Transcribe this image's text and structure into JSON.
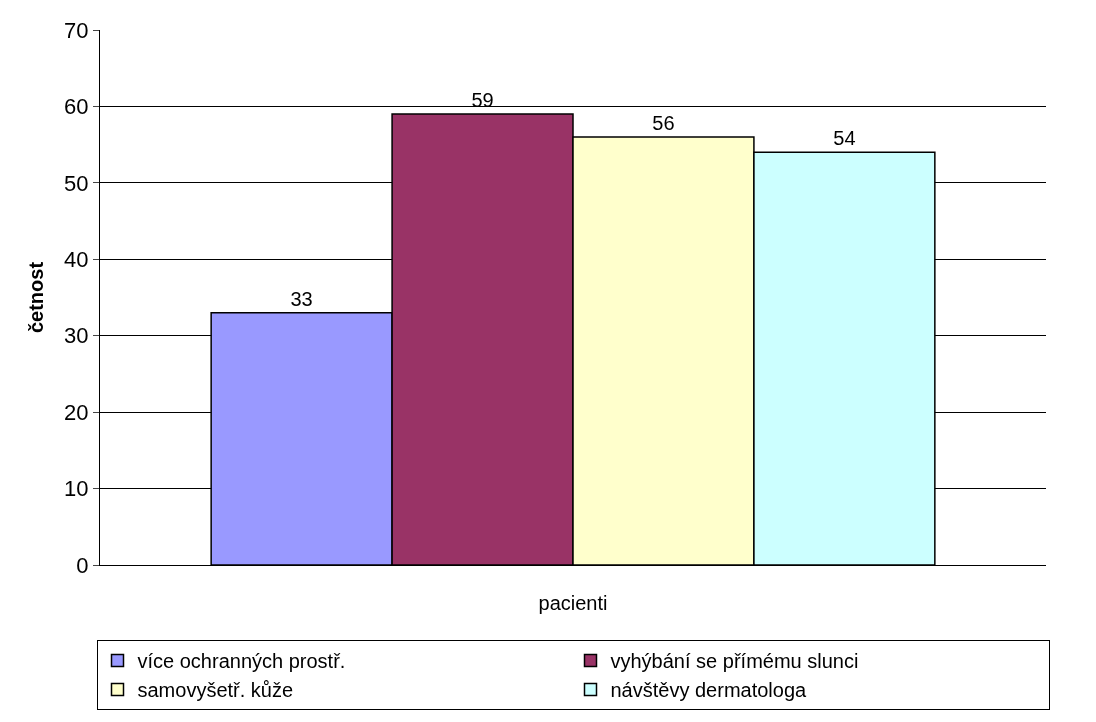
{
  "chart_data": {
    "type": "bar",
    "ylabel": "četnost",
    "categories": [
      "pacienti"
    ],
    "series": [
      {
        "name": "více ochranných prostř.",
        "color": "#9999ff",
        "values": [
          33
        ]
      },
      {
        "name": "vyhýbání se přímému slunci",
        "color": "#993366",
        "values": [
          59
        ]
      },
      {
        "name": "samovyšetř. kůže",
        "color": "#ffffcc",
        "values": [
          56
        ]
      },
      {
        "name": "návštěvy dermatologa",
        "color": "#ccffff",
        "values": [
          54
        ]
      }
    ],
    "ylim": [
      0,
      70
    ],
    "yticks": [
      0,
      10,
      20,
      30,
      40,
      50,
      60,
      70
    ],
    "grid": "y",
    "legend": "bottom",
    "data_labels": true
  }
}
